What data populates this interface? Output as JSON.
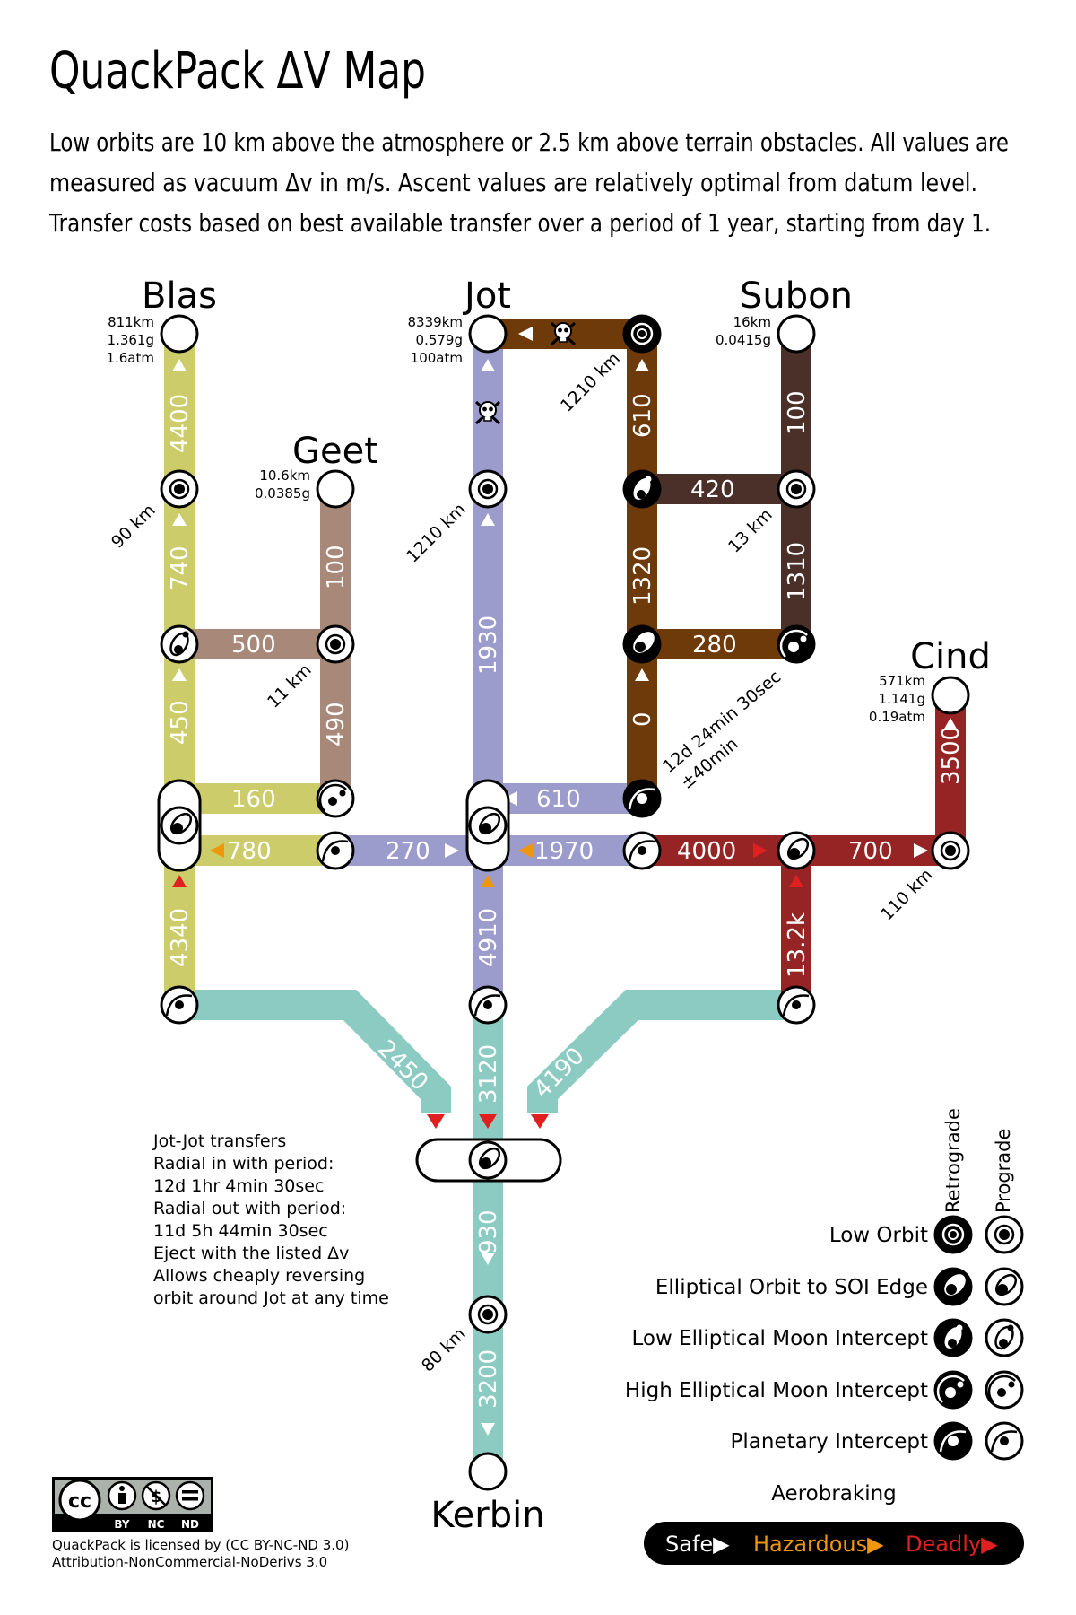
{
  "title": "QuackPack ΔV Map",
  "description": [
    "Low orbits are 10 km above the atmosphere or 2.5 km above terrain obstacles.  All values are",
    "measured as vacuum Δv in m/s.  Ascent values are relatively optimal from datum level.",
    "Transfer costs based on best available transfer over a period of 1 year, starting from day 1."
  ],
  "bodies": {
    "blas": {
      "name": "Blas",
      "stats": [
        "811km",
        "1.361g",
        "1.6atm"
      ],
      "low_orbit_alt": "90 km"
    },
    "geet": {
      "name": "Geet",
      "stats": [
        "10.6km",
        "0.0385g"
      ],
      "low_orbit_alt": "11 km"
    },
    "jot": {
      "name": "Jot",
      "stats": [
        "8339km",
        "0.579g",
        "100atm"
      ],
      "low_orbit_alt": "1210 km"
    },
    "subon": {
      "name": "Subon",
      "stats": [
        "16km",
        "0.0415g"
      ],
      "low_orbit_alt": "13 km"
    },
    "cind": {
      "name": "Cind",
      "stats": [
        "571km",
        "1.141g",
        "0.19atm"
      ],
      "low_orbit_alt": "110 km"
    },
    "kerbin": {
      "name": "Kerbin",
      "low_orbit_alt": "80 km"
    },
    "jot_moon": {
      "low_orbit_alt": "1210 km",
      "transfer_note": [
        "12d 24min 30sec",
        "±40min"
      ]
    }
  },
  "dv": {
    "blas_ascent": "4400",
    "blas_lo_to_soi": "740",
    "blas_soi_to_moon": "450",
    "blas_geet": "500",
    "geet_ascent": "100",
    "geet_capture": "490",
    "blas_hub_geet": "160",
    "blas_hub_jot": "780",
    "jot_to_blas": "270",
    "blas_intercept": "4340",
    "jot_ascent": "1930",
    "jot_from_moon": "610",
    "jot_hub_cind": "1970",
    "jot_moon_ascent": "610",
    "jot_moon_subon": "420",
    "subon_ascent": "100",
    "jot_moon_1320": "1320",
    "subon_1310": "1310",
    "moon_280": "280",
    "moon_zero": "0",
    "cind_transfer": "4000",
    "cind_capture": "700",
    "cind_ascent": "3500",
    "cind_intercept": "13.2k",
    "jot_intercept": "4910",
    "kerbin_blas": "2450",
    "kerbin_jot": "3120",
    "kerbin_cind": "4190",
    "kerbin_escape": "930",
    "kerbin_ascent": "3200"
  },
  "note": [
    "Jot-Jot transfers",
    "Radial in with period:",
    "12d 1hr 4min 30sec",
    "Radial out with period:",
    "11d 5h 44min 30sec",
    "Eject with the listed Δv",
    "Allows cheaply reversing",
    "orbit around Jot at any time"
  ],
  "legend": {
    "retrograde": "Retrograde",
    "prograde": "Prograde",
    "items": [
      "Low Orbit",
      "Elliptical Orbit to SOI Edge",
      "Low Elliptical Moon Intercept",
      "High Elliptical Moon Intercept",
      "Planetary Intercept"
    ],
    "aerobraking": "Aerobraking",
    "safe": "Safe",
    "hazardous": "Hazardous",
    "deadly": "Deadly",
    "arrow": "▶"
  },
  "license": {
    "text1": "QuackPack is licensed by (CC BY-NC-ND 3.0)",
    "text2": "Attribution-NonCommercial-NoDerivs 3.0",
    "cc": "cc",
    "by": "BY",
    "nc": "NC",
    "nd": "ND"
  },
  "colors": {
    "blas": "#cccc6b",
    "geet": "#a88878",
    "jot": "#9c9ccc",
    "jot_moon": "#6e3a0a",
    "subon": "#4a3028",
    "cind": "#962424",
    "kerbin": "#8ccbc2",
    "hazard": "#f0960a",
    "deadly": "#e02020"
  }
}
